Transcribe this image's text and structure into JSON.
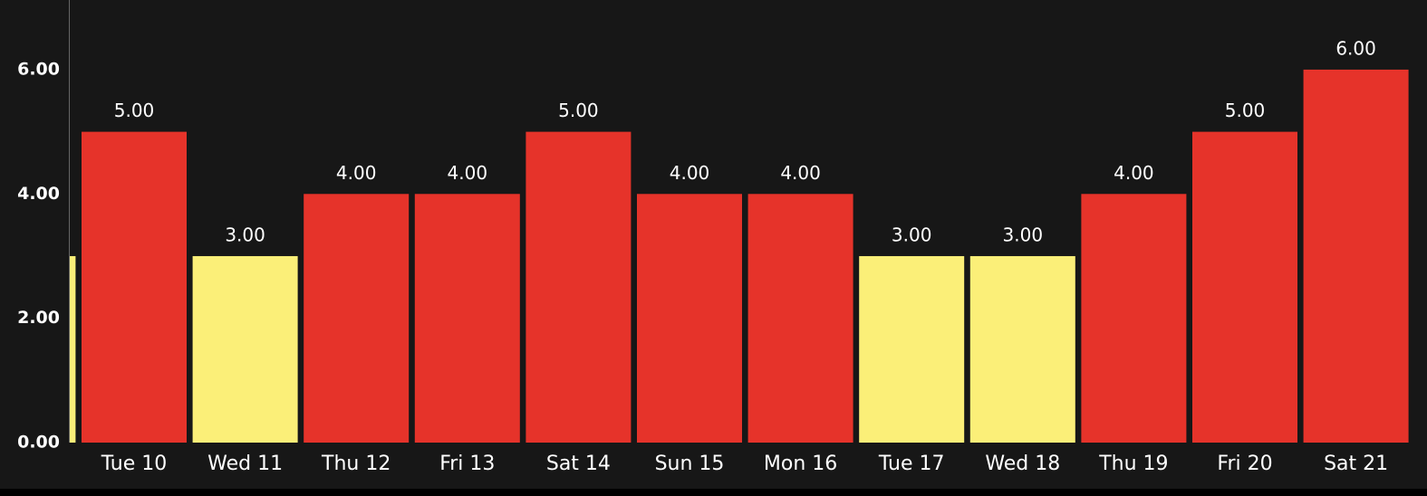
{
  "chart_data": {
    "type": "bar",
    "categories": [
      null,
      "Tue 10",
      "Wed 11",
      "Thu 12",
      "Fri 13",
      "Sat 14",
      "Sun 15",
      "Mon 16",
      "Tue 17",
      "Wed 18",
      "Thu 19",
      "Fri 20",
      "Sat 21"
    ],
    "values": [
      3,
      5,
      3,
      4,
      4,
      5,
      4,
      4,
      3,
      3,
      4,
      5,
      6
    ],
    "value_labels": [
      null,
      "5.00",
      "3.00",
      "4.00",
      "4.00",
      "5.00",
      "4.00",
      "4.00",
      "3.00",
      "3.00",
      "4.00",
      "5.00",
      "6.00"
    ],
    "colors": [
      "#fbef78",
      "#e6332a",
      "#fbef78",
      "#e6332a",
      "#e6332a",
      "#e6332a",
      "#e6332a",
      "#e6332a",
      "#fbef78",
      "#fbef78",
      "#e6332a",
      "#e6332a",
      "#e6332a"
    ],
    "ylim": [
      0,
      7.12
    ],
    "yticks": [
      {
        "value": 0,
        "label": "0.00"
      },
      {
        "value": 2,
        "label": "2.00"
      },
      {
        "value": 4,
        "label": "4.00"
      },
      {
        "value": 6,
        "label": "6.00"
      }
    ]
  }
}
